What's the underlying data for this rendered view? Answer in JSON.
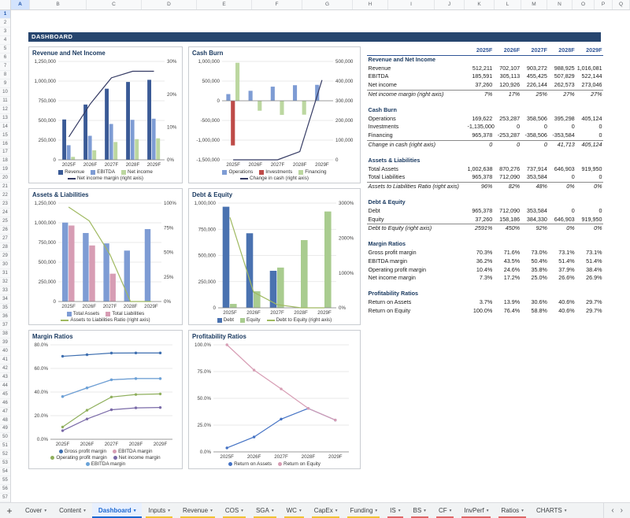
{
  "dashboard_title": "DASHBOARD",
  "spreadsheet": {
    "row_start": 1,
    "row_count": 57,
    "selected_row": 1,
    "columns": [
      {
        "letter": "A",
        "width": 24,
        "selected": true
      },
      {
        "letter": "B",
        "width": 72
      },
      {
        "letter": "C",
        "width": 70
      },
      {
        "letter": "D",
        "width": 70
      },
      {
        "letter": "E",
        "width": 70
      },
      {
        "letter": "F",
        "width": 64
      },
      {
        "letter": "G",
        "width": 64
      },
      {
        "letter": "H",
        "width": 45
      },
      {
        "letter": "I",
        "width": 59
      },
      {
        "letter": "J",
        "width": 38
      },
      {
        "letter": "K",
        "width": 38
      },
      {
        "letter": "L",
        "width": 34
      },
      {
        "letter": "M",
        "width": 33
      },
      {
        "letter": "N",
        "width": 32
      },
      {
        "letter": "O",
        "width": 28
      },
      {
        "letter": "P",
        "width": 23
      },
      {
        "letter": "Q",
        "width": 22
      }
    ]
  },
  "table": {
    "columns": [
      "2025F",
      "2026F",
      "2027F",
      "2028F",
      "2029F"
    ],
    "sections": [
      {
        "title": "Revenue and Net Income",
        "rows": [
          {
            "label": "Revenue",
            "values": [
              "512,211",
              "702,107",
              "903,272",
              "988,925",
              "1,016,081"
            ]
          },
          {
            "label": "EBITDA",
            "values": [
              "185,591",
              "305,113",
              "455,425",
              "507,829",
              "522,144"
            ]
          },
          {
            "label": "Net income",
            "values": [
              "37,260",
              "120,926",
              "226,144",
              "262,573",
              "273,046"
            ]
          },
          {
            "label": "Net income margin (right axis)",
            "italic": true,
            "values": [
              "7%",
              "17%",
              "25%",
              "27%",
              "27%"
            ]
          }
        ]
      },
      {
        "title": "Cash Burn",
        "rows": [
          {
            "label": "Operations",
            "values": [
              "169,622",
              "253,287",
              "358,506",
              "395,298",
              "405,124"
            ]
          },
          {
            "label": "Investments",
            "values": [
              "-1,135,000",
              "0",
              "0",
              "0",
              "0"
            ]
          },
          {
            "label": "Financing",
            "values": [
              "965,378",
              "-253,287",
              "-358,506",
              "-353,584",
              "0"
            ]
          },
          {
            "label": "Change in cash (right axis)",
            "italic": true,
            "values": [
              "0",
              "0",
              "0",
              "41,713",
              "405,124"
            ]
          }
        ]
      },
      {
        "title": "Assets & Liabilities",
        "rows": [
          {
            "label": "Total Assets",
            "values": [
              "1,002,638",
              "870,276",
              "737,914",
              "646,903",
              "919,950"
            ]
          },
          {
            "label": "Total Liabilities",
            "values": [
              "965,378",
              "712,090",
              "353,584",
              "0",
              "0"
            ]
          },
          {
            "label": "Assets to Liabilities Ratio (right axis)",
            "italic": true,
            "values": [
              "96%",
              "82%",
              "48%",
              "0%",
              "0%"
            ]
          }
        ]
      },
      {
        "title": "Debt & Equity",
        "rows": [
          {
            "label": "Debt",
            "values": [
              "965,378",
              "712,090",
              "353,584",
              "0",
              "0"
            ]
          },
          {
            "label": "Equity",
            "values": [
              "37,260",
              "158,186",
              "384,330",
              "646,903",
              "919,950"
            ]
          },
          {
            "label": "Debt to Equity (right axis)",
            "italic": true,
            "values": [
              "2591%",
              "450%",
              "92%",
              "0%",
              "0%"
            ]
          }
        ]
      },
      {
        "title": "Margin Ratios",
        "rows": [
          {
            "label": "Gross profit margin",
            "values": [
              "70.3%",
              "71.6%",
              "73.0%",
              "73.1%",
              "73.1%"
            ]
          },
          {
            "label": "EBITDA margin",
            "values": [
              "36.2%",
              "43.5%",
              "50.4%",
              "51.4%",
              "51.4%"
            ]
          },
          {
            "label": "Operating profit margin",
            "values": [
              "10.4%",
              "24.6%",
              "35.8%",
              "37.9%",
              "38.4%"
            ]
          },
          {
            "label": "Net income margin",
            "values": [
              "7.3%",
              "17.2%",
              "25.0%",
              "26.6%",
              "26.9%"
            ]
          }
        ]
      },
      {
        "title": "Profitability Ratios",
        "rows": [
          {
            "label": "Return on Assets",
            "values": [
              "3.7%",
              "13.9%",
              "30.6%",
              "40.6%",
              "29.7%"
            ]
          },
          {
            "label": "Return on Equity",
            "values": [
              "100.0%",
              "76.4%",
              "58.8%",
              "40.6%",
              "29.7%"
            ]
          }
        ]
      }
    ]
  },
  "chart_data": [
    {
      "title": "Revenue and Net Income",
      "type": "combo",
      "categories": [
        "2025F",
        "2026F",
        "2027F",
        "2028F",
        "2029F"
      ],
      "left_axis": {
        "min": 0,
        "max": 1250000,
        "ticks": [
          {
            "v": 0,
            "l": "0"
          },
          {
            "v": 250000,
            "l": "250,000"
          },
          {
            "v": 500000,
            "l": "500,000"
          },
          {
            "v": 750000,
            "l": "750,000"
          },
          {
            "v": 1000000,
            "l": "1,000,000"
          },
          {
            "v": 1250000,
            "l": "1,250,000"
          }
        ]
      },
      "right_axis": {
        "min": 0,
        "max": 0.3,
        "ticks": [
          {
            "v": 0,
            "l": "0%"
          },
          {
            "v": 0.1,
            "l": "10%"
          },
          {
            "v": 0.2,
            "l": "20%"
          },
          {
            "v": 0.3,
            "l": "30%"
          }
        ]
      },
      "bars": [
        {
          "name": "Revenue",
          "color": "#3A5A96",
          "values": [
            512211,
            702107,
            903272,
            988925,
            1016081
          ]
        },
        {
          "name": "EBITDA",
          "color": "#7E9CD4",
          "values": [
            185591,
            305113,
            455425,
            507829,
            522144
          ]
        },
        {
          "name": "Net income",
          "color": "#BCD7A0",
          "values": [
            37260,
            120926,
            226144,
            262573,
            273046
          ]
        }
      ],
      "lines": [
        {
          "name": "Net income margin (right axis)",
          "color": "#343A63",
          "axis": "right",
          "values": [
            0.07,
            0.17,
            0.25,
            0.27,
            0.27
          ]
        }
      ],
      "layout": {
        "pad_left": 33,
        "pad_right": 18
      }
    },
    {
      "title": "Cash Burn",
      "type": "combo",
      "categories": [
        "2025F",
        "2026F",
        "2027F",
        "2028F",
        "2029F"
      ],
      "left_axis": {
        "min": -1500000,
        "max": 1000000,
        "ticks": [
          {
            "v": -1500000,
            "l": "-1,500,000"
          },
          {
            "v": -1000000,
            "l": "-1,000,000"
          },
          {
            "v": -500000,
            "l": "-500,000"
          },
          {
            "v": 0,
            "l": "0"
          },
          {
            "v": 500000,
            "l": "500,000"
          },
          {
            "v": 1000000,
            "l": "1,000,000"
          }
        ]
      },
      "right_axis": {
        "min": 0,
        "max": 500000,
        "ticks": [
          {
            "v": 0,
            "l": "0"
          },
          {
            "v": 100000,
            "l": "100,000"
          },
          {
            "v": 200000,
            "l": "200,000"
          },
          {
            "v": 300000,
            "l": "300,000"
          },
          {
            "v": 400000,
            "l": "400,000"
          },
          {
            "v": 500000,
            "l": "500,000"
          }
        ]
      },
      "bars": [
        {
          "name": "Operations",
          "color": "#7E9CD4",
          "values": [
            169622,
            253287,
            358506,
            395298,
            405124
          ]
        },
        {
          "name": "Investments",
          "color": "#BE4B48",
          "values": [
            -1135000,
            0,
            0,
            0,
            0
          ]
        },
        {
          "name": "Financing",
          "color": "#BCD7A0",
          "values": [
            965378,
            -253287,
            -358506,
            -353584,
            0
          ]
        }
      ],
      "lines": [
        {
          "name": "Change in cash (right axis)",
          "color": "#343A63",
          "axis": "right",
          "values": [
            0,
            0,
            0,
            41713,
            405124
          ]
        }
      ],
      "layout": {
        "pad_left": 38,
        "pad_right": 30
      }
    },
    {
      "title": "Assets & Liabilities",
      "type": "combo",
      "categories": [
        "2025F",
        "2026F",
        "2027F",
        "2028F",
        "2029F"
      ],
      "left_axis": {
        "min": 0,
        "max": 1250000,
        "ticks": [
          {
            "v": 0,
            "l": "0"
          },
          {
            "v": 250000,
            "l": "250,000"
          },
          {
            "v": 500000,
            "l": "500,000"
          },
          {
            "v": 750000,
            "l": "750,000"
          },
          {
            "v": 1000000,
            "l": "1,000,000"
          },
          {
            "v": 1250000,
            "l": "1,250,000"
          }
        ]
      },
      "right_axis": {
        "min": 0,
        "max": 1,
        "ticks": [
          {
            "v": 0,
            "l": "0%"
          },
          {
            "v": 0.25,
            "l": "25%"
          },
          {
            "v": 0.5,
            "l": "50%"
          },
          {
            "v": 0.75,
            "l": "75%"
          },
          {
            "v": 1,
            "l": "100%"
          }
        ]
      },
      "bars": [
        {
          "name": "Total Assets",
          "color": "#7E9CD4",
          "values": [
            1002638,
            870276,
            737914,
            646903,
            919950
          ]
        },
        {
          "name": "Total Liabilities",
          "color": "#D79DB4",
          "values": [
            965378,
            712090,
            353584,
            0,
            0
          ]
        }
      ],
      "lines": [
        {
          "name": "Assets to Liabilities Ratio (right axis)",
          "color": "#9FB960",
          "axis": "right",
          "values": [
            0.96,
            0.82,
            0.48,
            0,
            0
          ]
        }
      ],
      "layout": {
        "pad_left": 33,
        "pad_right": 22
      }
    },
    {
      "title": "Debt & Equity",
      "type": "combo",
      "categories": [
        "2025F",
        "2026F",
        "2027F",
        "2028F",
        "2029F"
      ],
      "left_axis": {
        "min": 0,
        "max": 1000000,
        "ticks": [
          {
            "v": 0,
            "l": "0"
          },
          {
            "v": 250000,
            "l": "250,000"
          },
          {
            "v": 500000,
            "l": "500,000"
          },
          {
            "v": 750000,
            "l": "750,000"
          },
          {
            "v": 1000000,
            "l": "1,000,000"
          }
        ]
      },
      "right_axis": {
        "min": 0,
        "max": 30,
        "ticks": [
          {
            "v": 0,
            "l": "0%"
          },
          {
            "v": 10,
            "l": "1000%"
          },
          {
            "v": 20,
            "l": "2000%"
          },
          {
            "v": 30,
            "l": "3000%"
          }
        ]
      },
      "bars": [
        {
          "name": "Debt",
          "color": "#4A72B0",
          "values": [
            965378,
            712090,
            353584,
            0,
            0
          ]
        },
        {
          "name": "Equity",
          "color": "#A9CC8F",
          "values": [
            37260,
            158186,
            384330,
            646903,
            919950
          ]
        }
      ],
      "lines": [
        {
          "name": "Debt to Equity (right axis)",
          "color": "#9FB960",
          "axis": "right",
          "values": [
            25.91,
            4.5,
            0.92,
            0,
            0
          ]
        }
      ],
      "layout": {
        "pad_left": 33,
        "pad_right": 26
      }
    },
    {
      "title": "Margin Ratios",
      "type": "line",
      "categories": [
        "2025F",
        "2026F",
        "2027F",
        "2028F",
        "2029F"
      ],
      "left_axis": {
        "min": 0,
        "max": 0.8,
        "ticks": [
          {
            "v": 0,
            "l": "0.0%"
          },
          {
            "v": 0.2,
            "l": "20.0%"
          },
          {
            "v": 0.4,
            "l": "40.0%"
          },
          {
            "v": 0.6,
            "l": "60.0%"
          },
          {
            "v": 0.8,
            "l": "80.0%"
          }
        ]
      },
      "lines": [
        {
          "name": "Gross profit margin",
          "color": "#3E6FB0",
          "values": [
            0.703,
            0.716,
            0.73,
            0.731,
            0.731
          ]
        },
        {
          "name": "EBITDA margin",
          "color": "#D79DB4",
          "values": [
            0.362,
            0.435,
            0.504,
            0.514,
            0.514
          ]
        },
        {
          "name": "Operating profit margin",
          "color": "#8FAF5C",
          "values": [
            0.104,
            0.246,
            0.358,
            0.379,
            0.384
          ]
        },
        {
          "name": "Net income margin",
          "color": "#7A6AA8",
          "values": [
            0.073,
            0.172,
            0.25,
            0.266,
            0.269
          ]
        },
        {
          "name": "EBITDA margin",
          "color": "#69A3D9",
          "values": [
            0.362,
            0.435,
            0.504,
            0.514,
            0.514
          ]
        }
      ],
      "layout": {
        "pad_left": 23,
        "pad_right": 8
      }
    },
    {
      "title": "Profitability Ratios",
      "type": "line",
      "categories": [
        "2025F",
        "2026F",
        "2027F",
        "2028F",
        "2029F"
      ],
      "left_axis": {
        "min": 0,
        "max": 1,
        "ticks": [
          {
            "v": 0,
            "l": "0.0%"
          },
          {
            "v": 0.25,
            "l": "25.0%"
          },
          {
            "v": 0.5,
            "l": "50.0%"
          },
          {
            "v": 0.75,
            "l": "75.0%"
          },
          {
            "v": 1,
            "l": "100.0%"
          }
        ]
      },
      "lines": [
        {
          "name": "Return on Assets",
          "color": "#4472C4",
          "values": [
            0.037,
            0.139,
            0.306,
            0.406,
            0.297
          ]
        },
        {
          "name": "Return on Equity",
          "color": "#D79DB4",
          "values": [
            1.0,
            0.764,
            0.588,
            0.406,
            0.297
          ]
        }
      ],
      "layout": {
        "pad_left": 27,
        "pad_right": 10
      }
    }
  ],
  "tabs": {
    "items": [
      {
        "label": "Cover"
      },
      {
        "label": "Content"
      },
      {
        "label": "Dashboard",
        "active": true
      },
      {
        "label": "Inputs",
        "color": "#F1C232"
      },
      {
        "label": "Revenue",
        "color": "#F1C232"
      },
      {
        "label": "COS",
        "color": "#F1C232"
      },
      {
        "label": "SGA",
        "color": "#F1C232"
      },
      {
        "label": "WC",
        "color": "#F1C232"
      },
      {
        "label": "CapEx",
        "color": "#F1C232"
      },
      {
        "label": "Funding",
        "color": "#F1C232"
      },
      {
        "label": "IS",
        "color": "#E06666"
      },
      {
        "label": "BS",
        "color": "#E06666"
      },
      {
        "label": "CF",
        "color": "#E06666"
      },
      {
        "label": "InvPerf",
        "color": "#E06666"
      },
      {
        "label": "Ratios",
        "color": "#E06666"
      },
      {
        "label": "CHARTS"
      }
    ]
  },
  "icons": {
    "add_sheet": "+",
    "tab_menu": "▾",
    "scroll_left": "‹",
    "scroll_right": "›"
  }
}
